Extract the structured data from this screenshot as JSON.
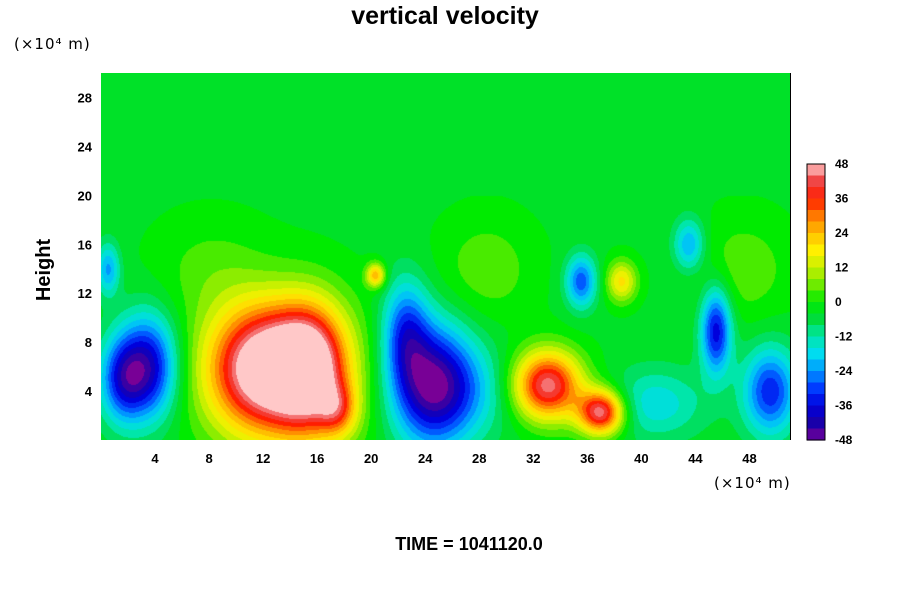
{
  "chart_data": {
    "type": "heatmap",
    "title": "vertical velocity",
    "ylabel": "Height",
    "xlabel": "",
    "x_unit": "(×10⁴ m)",
    "y_unit": "(×10⁴ m)",
    "footer": "TIME = 1041120.0",
    "xlim": [
      0,
      51
    ],
    "ylim": [
      0,
      30
    ],
    "x_ticks": [
      4,
      8,
      12,
      16,
      20,
      24,
      28,
      32,
      36,
      40,
      44,
      48
    ],
    "y_ticks": [
      4,
      8,
      12,
      16,
      20,
      24,
      28
    ],
    "colorbar": {
      "min": -48,
      "max": 48,
      "step": 4,
      "tick_values": [
        48,
        36,
        24,
        12,
        0,
        -12,
        -24,
        -36,
        -48
      ]
    },
    "background_value": -3,
    "features": [
      {
        "x": 3.5,
        "y": 6,
        "sx": 1.5,
        "sy": 3,
        "value": -36
      },
      {
        "x": 1.5,
        "y": 5,
        "sx": 1.2,
        "sy": 2.5,
        "value": -26
      },
      {
        "x": 12,
        "y": 6,
        "sx": 2.8,
        "sy": 3.5,
        "value": 48
      },
      {
        "x": 15.5,
        "y": 6,
        "sx": 1.8,
        "sy": 3.5,
        "value": 38
      },
      {
        "x": 14,
        "y": 5,
        "sx": 4.5,
        "sy": 4.5,
        "value": 18
      },
      {
        "x": 17.5,
        "y": 2.5,
        "sx": 1,
        "sy": 1.5,
        "value": 20
      },
      {
        "x": 24.5,
        "y": 4.5,
        "sx": 2.2,
        "sy": 3.5,
        "value": -44
      },
      {
        "x": 22.5,
        "y": 9,
        "sx": 1.2,
        "sy": 3,
        "value": -24
      },
      {
        "x": 33,
        "y": 4.5,
        "sx": 1.8,
        "sy": 2,
        "value": 48
      },
      {
        "x": 37,
        "y": 2.3,
        "sx": 1.2,
        "sy": 1.3,
        "value": 48
      },
      {
        "x": 35.5,
        "y": 13,
        "sx": 0.8,
        "sy": 1.5,
        "value": -26
      },
      {
        "x": 38.5,
        "y": 13,
        "sx": 0.8,
        "sy": 1.2,
        "value": 22
      },
      {
        "x": 45.5,
        "y": 9,
        "sx": 0.8,
        "sy": 2.5,
        "value": -34
      },
      {
        "x": 49.5,
        "y": 4,
        "sx": 1.4,
        "sy": 2.5,
        "value": -30
      },
      {
        "x": 43.5,
        "y": 16,
        "sx": 0.8,
        "sy": 1.5,
        "value": -20
      },
      {
        "x": 20.3,
        "y": 13.5,
        "sx": 0.5,
        "sy": 0.7,
        "value": 28
      },
      {
        "x": 28.5,
        "y": 14,
        "sx": 2.5,
        "sy": 3,
        "value": 8
      },
      {
        "x": 47.5,
        "y": 14,
        "sx": 2.5,
        "sy": 3,
        "value": 8
      },
      {
        "x": 28,
        "y": 4,
        "sx": 2.5,
        "sy": 2.5,
        "value": -8
      },
      {
        "x": 41,
        "y": 3,
        "sx": 2.5,
        "sy": 2,
        "value": -14
      },
      {
        "x": 8,
        "y": 14,
        "sx": 3,
        "sy": 3,
        "value": 6
      },
      {
        "x": 0.5,
        "y": 14,
        "sx": 0.6,
        "sy": 1.5,
        "value": -20
      }
    ],
    "upper_layer": {
      "above_height": 20,
      "value": -3
    }
  }
}
